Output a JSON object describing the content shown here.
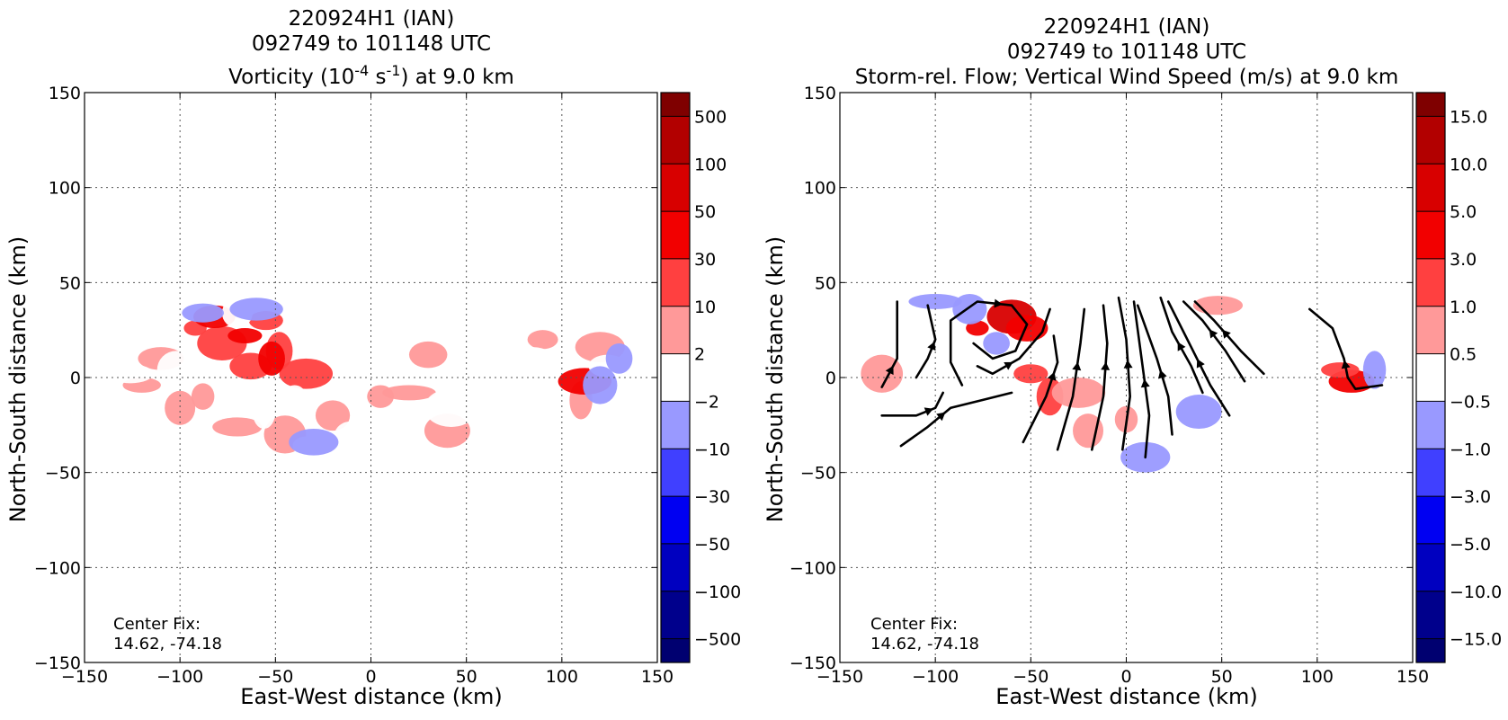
{
  "chart_data": [
    {
      "type": "heatmap",
      "title_lines": [
        "220924H1 (IAN)",
        "092749 to 101148 UTC"
      ],
      "title_var_pre": "Vorticity (10",
      "title_var_sup1": "-4",
      "title_var_mid": " s",
      "title_var_sup2": "-1",
      "title_var_post": ") at 9.0 km",
      "xlabel": "East-West distance (km)",
      "ylabel": "North-South distance (km)",
      "xlim": [
        -150,
        150
      ],
      "ylim": [
        -150,
        150
      ],
      "xticks": [
        -150,
        -100,
        -50,
        0,
        50,
        100,
        150
      ],
      "yticks": [
        -150,
        -100,
        -50,
        0,
        50,
        100,
        150
      ],
      "xtick_labels": [
        "−150",
        "−100",
        "−50",
        "0",
        "50",
        "100",
        "150"
      ],
      "ytick_labels": [
        "−150",
        "−100",
        "−50",
        "0",
        "50",
        "100",
        "150"
      ],
      "grid": true,
      "annotation": [
        "Center Fix:",
        "14.62, -74.18"
      ],
      "colorbar": {
        "labels": [
          "500",
          "100",
          "50",
          "30",
          "10",
          "2",
          "−2",
          "−10",
          "−30",
          "−50",
          "−100",
          "−500"
        ],
        "colors": [
          "#7f0000",
          "#b20000",
          "#d80000",
          "#f20000",
          "#ff4040",
          "#ff9999",
          "#ffffff",
          "#9999ff",
          "#4040ff",
          "#0000f2",
          "#0000c0",
          "#00008c",
          "#000070"
        ]
      },
      "patches": [
        {
          "x": -92,
          "y": 26,
          "level": 10
        },
        {
          "x": -78,
          "y": 18,
          "level": 10
        },
        {
          "x": -63,
          "y": 6,
          "level": 10
        },
        {
          "x": -55,
          "y": 30,
          "level": 10
        },
        {
          "x": -48,
          "y": 14,
          "level": 10
        },
        {
          "x": -34,
          "y": 2,
          "level": 10
        },
        {
          "x": -110,
          "y": 10,
          "level": 2
        },
        {
          "x": -120,
          "y": -4,
          "level": 2
        },
        {
          "x": -100,
          "y": -16,
          "level": 2
        },
        {
          "x": -88,
          "y": -10,
          "level": 2
        },
        {
          "x": -70,
          "y": -26,
          "level": 2
        },
        {
          "x": -45,
          "y": -30,
          "level": 2
        },
        {
          "x": -20,
          "y": -20,
          "level": 2
        },
        {
          "x": 5,
          "y": -10,
          "level": 2
        },
        {
          "x": 20,
          "y": -8,
          "level": 2
        },
        {
          "x": 40,
          "y": -28,
          "level": 2
        },
        {
          "x": 30,
          "y": 12,
          "level": 2
        },
        {
          "x": 90,
          "y": 20,
          "level": 2
        },
        {
          "x": 110,
          "y": -12,
          "level": 2
        },
        {
          "x": 120,
          "y": 16,
          "level": 2
        },
        {
          "x": -82,
          "y": 32,
          "level": 30
        },
        {
          "x": -66,
          "y": 22,
          "level": 30
        },
        {
          "x": -52,
          "y": 10,
          "level": 30
        },
        {
          "x": 112,
          "y": -2,
          "level": 30
        },
        {
          "x": -126,
          "y": 2,
          "level": -2
        },
        {
          "x": -102,
          "y": 4,
          "level": -2
        },
        {
          "x": -70,
          "y": 34,
          "level": -2
        },
        {
          "x": -40,
          "y": -10,
          "level": -2
        },
        {
          "x": -26,
          "y": 22,
          "level": -2
        },
        {
          "x": -16,
          "y": 34,
          "level": -2
        },
        {
          "x": -10,
          "y": -30,
          "level": -2
        },
        {
          "x": -34,
          "y": -36,
          "level": -2
        },
        {
          "x": 42,
          "y": -16,
          "level": -2
        },
        {
          "x": 85,
          "y": 8,
          "level": -2
        },
        {
          "x": 124,
          "y": 6,
          "level": -2
        },
        {
          "x": -100,
          "y": -30,
          "level": -2
        },
        {
          "x": -56,
          "y": -18,
          "level": -2
        },
        {
          "x": -30,
          "y": -34,
          "level": -10
        },
        {
          "x": -88,
          "y": 34,
          "level": -10
        },
        {
          "x": 120,
          "y": -4,
          "level": -10
        },
        {
          "x": 130,
          "y": 10,
          "level": -10
        },
        {
          "x": -60,
          "y": 36,
          "level": -10
        }
      ]
    },
    {
      "type": "heatmap",
      "title_lines": [
        "220924H1 (IAN)",
        "092749 to 101148 UTC",
        "Storm-rel. Flow; Vertical Wind Speed (m/s) at 9.0 km"
      ],
      "xlabel": "East-West distance (km)",
      "ylabel": "North-South distance (km)",
      "xlim": [
        -150,
        150
      ],
      "ylim": [
        -150,
        150
      ],
      "xticks": [
        -150,
        -100,
        -50,
        0,
        50,
        100,
        150
      ],
      "yticks": [
        -150,
        -100,
        -50,
        0,
        50,
        100,
        150
      ],
      "xtick_labels": [
        "−150",
        "−100",
        "−50",
        "0",
        "50",
        "100",
        "150"
      ],
      "ytick_labels": [
        "−150",
        "−100",
        "−50",
        "0",
        "50",
        "100",
        "150"
      ],
      "grid": true,
      "annotation": [
        "Center Fix:",
        "14.62, -74.18"
      ],
      "colorbar": {
        "labels": [
          "15.0",
          "10.0",
          "5.0",
          "3.0",
          "1.0",
          "0.5",
          "−0.5",
          "−1.0",
          "−3.0",
          "−5.0",
          "−10.0",
          "−15.0"
        ],
        "colors": [
          "#7f0000",
          "#b20000",
          "#d80000",
          "#f20000",
          "#ff4040",
          "#ff9999",
          "#ffffff",
          "#9999ff",
          "#4040ff",
          "#0000f2",
          "#0000c0",
          "#00008c",
          "#000070"
        ]
      },
      "patches": [
        {
          "x": -78,
          "y": 26,
          "level": 3.0
        },
        {
          "x": -60,
          "y": 32,
          "level": 5.0
        },
        {
          "x": -52,
          "y": 26,
          "level": 3.0
        },
        {
          "x": -50,
          "y": 2,
          "level": 1.0
        },
        {
          "x": -40,
          "y": -10,
          "level": 1.0
        },
        {
          "x": -25,
          "y": -8,
          "level": 0.5
        },
        {
          "x": 118,
          "y": -2,
          "level": 3.0
        },
        {
          "x": 112,
          "y": 4,
          "level": 1.0
        },
        {
          "x": -20,
          "y": -28,
          "level": 0.5
        },
        {
          "x": 0,
          "y": -22,
          "level": 0.5
        },
        {
          "x": 48,
          "y": 38,
          "level": 0.5
        },
        {
          "x": -128,
          "y": 2,
          "level": 0.5
        },
        {
          "x": -82,
          "y": 36,
          "level": -1.0
        },
        {
          "x": -68,
          "y": 18,
          "level": -1.0
        },
        {
          "x": -100,
          "y": 40,
          "level": -1.0
        },
        {
          "x": 38,
          "y": -18,
          "level": -1.0
        },
        {
          "x": -42,
          "y": -36,
          "level": -0.5
        },
        {
          "x": -92,
          "y": -34,
          "level": -0.5
        },
        {
          "x": 130,
          "y": 4,
          "level": -1.0
        },
        {
          "x": 10,
          "y": -42,
          "level": -1.0
        }
      ],
      "streamlines": [
        [
          [
            -128,
            -20
          ],
          [
            -110,
            -20
          ],
          [
            -100,
            -16
          ],
          [
            -96,
            -8
          ]
        ],
        [
          [
            -118,
            -36
          ],
          [
            -104,
            -26
          ],
          [
            -92,
            -16
          ],
          [
            -76,
            -12
          ],
          [
            -60,
            -8
          ]
        ],
        [
          [
            -128,
            -5
          ],
          [
            -120,
            10
          ],
          [
            -120,
            40
          ]
        ],
        [
          [
            -110,
            0
          ],
          [
            -104,
            10
          ],
          [
            -100,
            20
          ],
          [
            -104,
            38
          ]
        ],
        [
          [
            -86,
            -4
          ],
          [
            -92,
            8
          ],
          [
            -92,
            30
          ],
          [
            -78,
            40
          ],
          [
            -60,
            38
          ],
          [
            -52,
            28
          ],
          [
            -58,
            14
          ],
          [
            -70,
            10
          ],
          [
            -80,
            18
          ]
        ],
        [
          [
            -78,
            6
          ],
          [
            -70,
            2
          ],
          [
            -56,
            10
          ],
          [
            -44,
            24
          ],
          [
            -40,
            36
          ]
        ],
        [
          [
            -54,
            -34
          ],
          [
            -42,
            -10
          ],
          [
            -36,
            8
          ],
          [
            -38,
            22
          ]
        ],
        [
          [
            -36,
            -38
          ],
          [
            -28,
            -10
          ],
          [
            -24,
            18
          ],
          [
            -22,
            36
          ]
        ],
        [
          [
            -18,
            -38
          ],
          [
            -12,
            -10
          ],
          [
            -10,
            18
          ],
          [
            -12,
            38
          ]
        ],
        [
          [
            -2,
            -38
          ],
          [
            2,
            -10
          ],
          [
            0,
            20
          ],
          [
            -4,
            42
          ]
        ],
        [
          [
            10,
            -42
          ],
          [
            12,
            -20
          ],
          [
            8,
            10
          ],
          [
            4,
            40
          ]
        ],
        [
          [
            24,
            -30
          ],
          [
            22,
            -10
          ],
          [
            16,
            10
          ],
          [
            6,
            38
          ]
        ],
        [
          [
            40,
            -8
          ],
          [
            34,
            6
          ],
          [
            24,
            24
          ],
          [
            18,
            42
          ]
        ],
        [
          [
            54,
            -20
          ],
          [
            44,
            -4
          ],
          [
            34,
            16
          ],
          [
            22,
            40
          ]
        ],
        [
          [
            62,
            -2
          ],
          [
            52,
            14
          ],
          [
            40,
            30
          ],
          [
            30,
            40
          ]
        ],
        [
          [
            72,
            2
          ],
          [
            60,
            14
          ],
          [
            46,
            30
          ],
          [
            36,
            40
          ]
        ],
        [
          [
            134,
            -4
          ],
          [
            120,
            -6
          ],
          [
            116,
            0
          ],
          [
            114,
            10
          ],
          [
            108,
            26
          ],
          [
            96,
            36
          ]
        ]
      ]
    }
  ]
}
